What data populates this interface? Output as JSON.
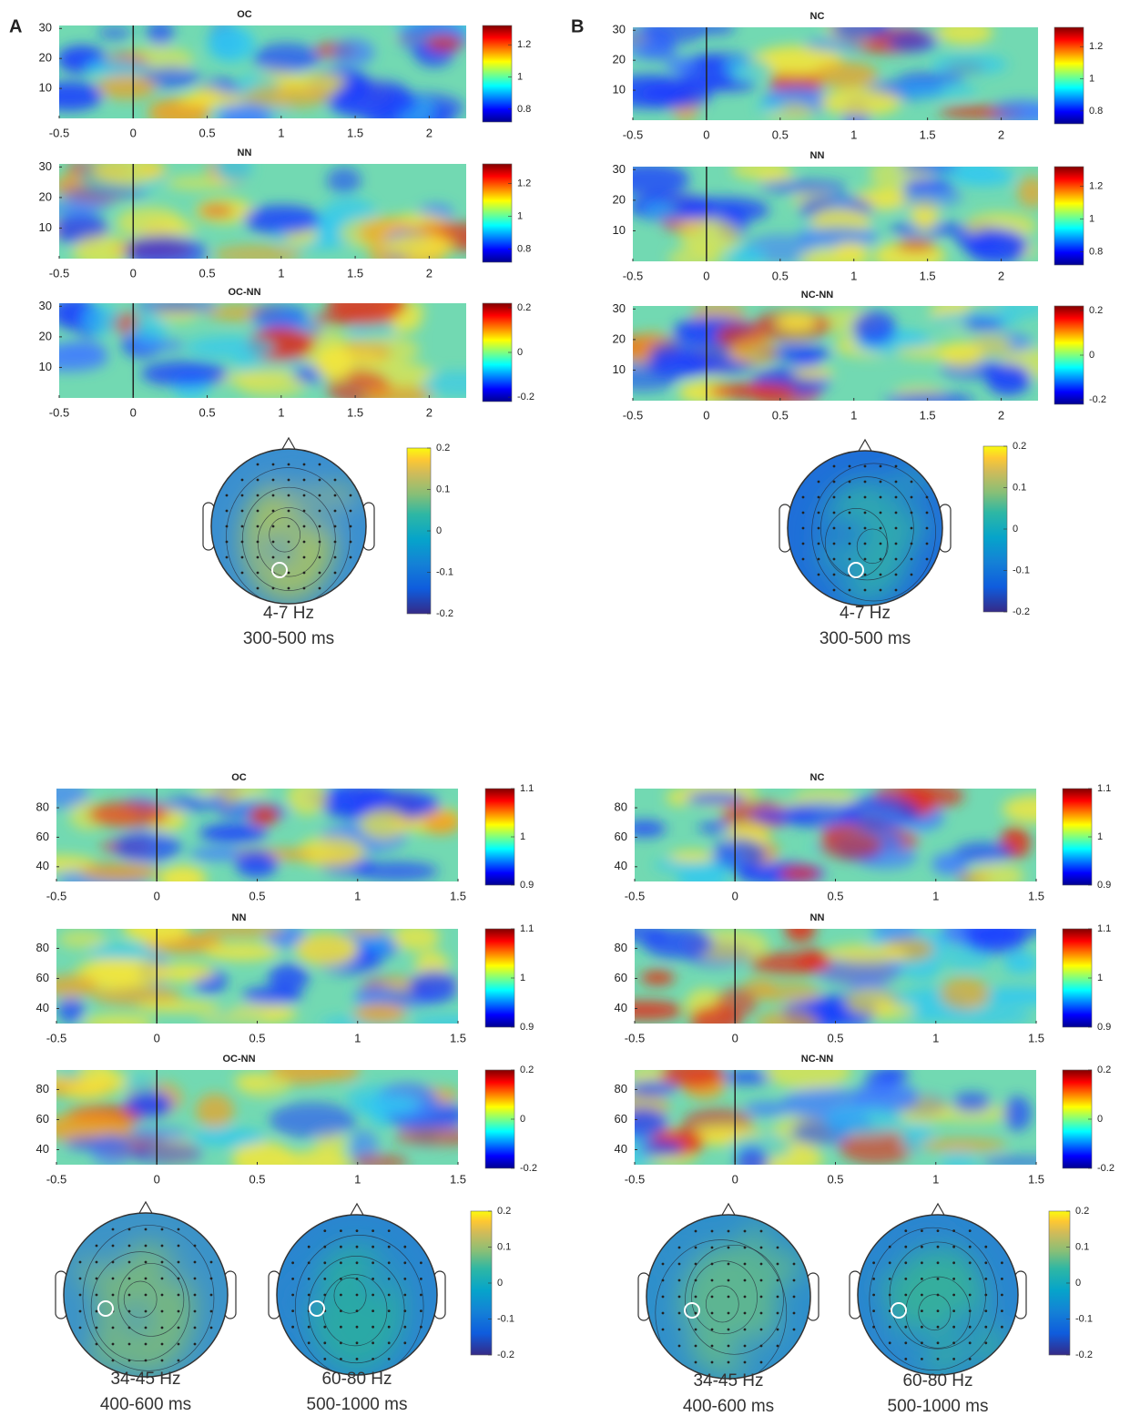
{
  "panel_labels": [
    "A",
    "B"
  ],
  "chart_data": [
    {
      "type": "heatmap",
      "title": "OC",
      "xlim": [
        -0.5,
        2.25
      ],
      "xticks": [
        -0.5,
        0,
        0.5,
        1,
        1.5,
        2
      ],
      "ylim": [
        0,
        31
      ],
      "yticks": [
        10,
        20,
        30
      ],
      "event_time": 0,
      "clim": [
        0.72,
        1.32
      ],
      "cticks": [
        0.8,
        1,
        1.2
      ],
      "colormap": "jet"
    },
    {
      "type": "heatmap",
      "title": "NN",
      "xlim": [
        -0.5,
        2.25
      ],
      "xticks": [
        -0.5,
        0,
        0.5,
        1,
        1.5,
        2
      ],
      "ylim": [
        0,
        31
      ],
      "yticks": [
        10,
        20,
        30
      ],
      "event_time": 0,
      "clim": [
        0.72,
        1.32
      ],
      "cticks": [
        0.8,
        1,
        1.2
      ],
      "colormap": "jet"
    },
    {
      "type": "heatmap",
      "title": "OC-NN",
      "xlim": [
        -0.5,
        2.25
      ],
      "xticks": [
        -0.5,
        0,
        0.5,
        1,
        1.5,
        2
      ],
      "ylim": [
        0,
        31
      ],
      "yticks": [
        10,
        20,
        30
      ],
      "event_time": 0,
      "clim": [
        -0.22,
        0.22
      ],
      "cticks": [
        -0.2,
        0,
        0.2
      ],
      "colormap": "jet"
    },
    {
      "type": "heatmap",
      "title": "NC",
      "xlim": [
        -0.5,
        2.25
      ],
      "xticks": [
        -0.5,
        0,
        0.5,
        1,
        1.5,
        2
      ],
      "ylim": [
        0,
        31
      ],
      "yticks": [
        10,
        20,
        30
      ],
      "event_time": 0,
      "clim": [
        0.72,
        1.32
      ],
      "cticks": [
        0.8,
        1,
        1.2
      ],
      "colormap": "jet"
    },
    {
      "type": "heatmap",
      "title": "NN",
      "xlim": [
        -0.5,
        2.25
      ],
      "xticks": [
        -0.5,
        0,
        0.5,
        1,
        1.5,
        2
      ],
      "ylim": [
        0,
        31
      ],
      "yticks": [
        10,
        20,
        30
      ],
      "event_time": 0,
      "clim": [
        0.72,
        1.32
      ],
      "cticks": [
        0.8,
        1,
        1.2
      ],
      "colormap": "jet"
    },
    {
      "type": "heatmap",
      "title": "NC-NN",
      "xlim": [
        -0.5,
        2.25
      ],
      "xticks": [
        -0.5,
        0,
        0.5,
        1,
        1.5,
        2
      ],
      "ylim": [
        0,
        31
      ],
      "yticks": [
        10,
        20,
        30
      ],
      "event_time": 0,
      "clim": [
        -0.22,
        0.22
      ],
      "cticks": [
        -0.2,
        0,
        0.2
      ],
      "colormap": "jet"
    },
    {
      "type": "heatmap",
      "title": "OC",
      "xlim": [
        -0.5,
        1.5
      ],
      "xticks": [
        -0.5,
        0,
        0.5,
        1,
        1.5
      ],
      "ylim": [
        30,
        93
      ],
      "yticks": [
        40,
        60,
        80
      ],
      "event_time": 0,
      "clim": [
        0.9,
        1.1
      ],
      "cticks": [
        0.9,
        1,
        1.1
      ],
      "colormap": "jet"
    },
    {
      "type": "heatmap",
      "title": "NN",
      "xlim": [
        -0.5,
        1.5
      ],
      "xticks": [
        -0.5,
        0,
        0.5,
        1,
        1.5
      ],
      "ylim": [
        30,
        93
      ],
      "yticks": [
        40,
        60,
        80
      ],
      "event_time": 0,
      "clim": [
        0.9,
        1.1
      ],
      "cticks": [
        0.9,
        1,
        1.1
      ],
      "colormap": "jet"
    },
    {
      "type": "heatmap",
      "title": "OC-NN",
      "xlim": [
        -0.5,
        1.5
      ],
      "xticks": [
        -0.5,
        0,
        0.5,
        1,
        1.5
      ],
      "ylim": [
        30,
        93
      ],
      "yticks": [
        40,
        60,
        80
      ],
      "event_time": 0,
      "clim": [
        -0.2,
        0.2
      ],
      "cticks": [
        -0.2,
        0,
        0.2
      ],
      "colormap": "jet"
    },
    {
      "type": "heatmap",
      "title": "NC",
      "xlim": [
        -0.5,
        1.5
      ],
      "xticks": [
        -0.5,
        0,
        0.5,
        1,
        1.5
      ],
      "ylim": [
        30,
        93
      ],
      "yticks": [
        40,
        60,
        80
      ],
      "event_time": 0,
      "clim": [
        0.9,
        1.1
      ],
      "cticks": [
        0.9,
        1,
        1.1
      ],
      "colormap": "jet"
    },
    {
      "type": "heatmap",
      "title": "NN",
      "xlim": [
        -0.5,
        1.5
      ],
      "xticks": [
        -0.5,
        0,
        0.5,
        1,
        1.5
      ],
      "ylim": [
        30,
        93
      ],
      "yticks": [
        40,
        60,
        80
      ],
      "event_time": 0,
      "clim": [
        0.9,
        1.1
      ],
      "cticks": [
        0.9,
        1,
        1.1
      ],
      "colormap": "jet"
    },
    {
      "type": "heatmap",
      "title": "NC-NN",
      "xlim": [
        -0.5,
        1.5
      ],
      "xticks": [
        -0.5,
        0,
        0.5,
        1,
        1.5
      ],
      "ylim": [
        30,
        93
      ],
      "yticks": [
        40,
        60,
        80
      ],
      "event_time": 0,
      "clim": [
        -0.2,
        0.2
      ],
      "cticks": [
        -0.2,
        0,
        0.2
      ],
      "colormap": "jet"
    }
  ],
  "topomaps": [
    {
      "lines": [
        "4-7 Hz",
        "300-500 ms"
      ]
    },
    {
      "lines": [
        "4-7 Hz",
        "300-500 ms"
      ]
    },
    {
      "lines": [
        "34-45 Hz",
        "400-600 ms"
      ]
    },
    {
      "lines": [
        "60-80 Hz",
        "500-1000 ms"
      ]
    },
    {
      "lines": [
        "34-45 Hz",
        "400-600 ms"
      ]
    },
    {
      "lines": [
        "60-80 Hz",
        "500-1000 ms"
      ]
    }
  ],
  "topo_colorbars": [
    {
      "clim": [
        -0.2,
        0.2
      ],
      "cticks": [
        -0.2,
        -0.1,
        0,
        0.1,
        0.2
      ],
      "colormap": "parula"
    },
    {
      "clim": [
        -0.2,
        0.2
      ],
      "cticks": [
        -0.2,
        -0.1,
        0,
        0.1,
        0.2
      ],
      "colormap": "parula"
    },
    {
      "clim": [
        -0.2,
        0.2
      ],
      "cticks": [
        -0.2,
        -0.1,
        0,
        0.1,
        0.2
      ],
      "colormap": "parula"
    },
    {
      "clim": [
        -0.2,
        0.2
      ],
      "cticks": [
        -0.2,
        -0.1,
        0,
        0.1,
        0.2
      ],
      "colormap": "parula"
    }
  ]
}
